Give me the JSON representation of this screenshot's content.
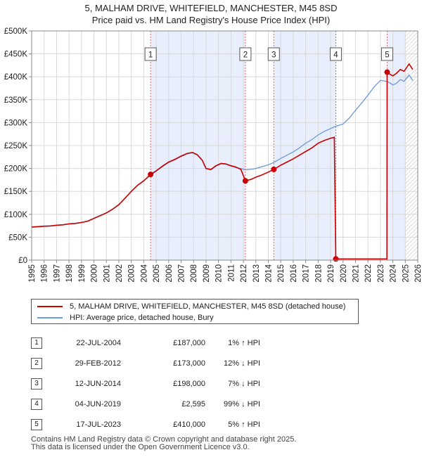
{
  "chart_data": {
    "type": "line",
    "title": "5, MALHAM DRIVE, WHITEFIELD, MANCHESTER, M45 8SD",
    "subtitle": "Price paid vs. HM Land Registry's House Price Index (HPI)",
    "xlabel": "",
    "ylabel": "",
    "xlim": [
      1995,
      2026
    ],
    "ylim": [
      0,
      500000
    ],
    "x_ticks": [
      "1995",
      "1996",
      "1997",
      "1998",
      "1999",
      "2000",
      "2001",
      "2002",
      "2003",
      "2004",
      "2005",
      "2006",
      "2007",
      "2008",
      "2009",
      "2010",
      "2011",
      "2012",
      "2013",
      "2014",
      "2015",
      "2016",
      "2017",
      "2018",
      "2019",
      "2020",
      "2021",
      "2022",
      "2023",
      "2024",
      "2025",
      "2026"
    ],
    "y_ticks": [
      {
        "value": 0,
        "label": "£0"
      },
      {
        "value": 50000,
        "label": "£50K"
      },
      {
        "value": 100000,
        "label": "£100K"
      },
      {
        "value": 150000,
        "label": "£150K"
      },
      {
        "value": 200000,
        "label": "£200K"
      },
      {
        "value": 250000,
        "label": "£250K"
      },
      {
        "value": 300000,
        "label": "£300K"
      },
      {
        "value": 350000,
        "label": "£350K"
      },
      {
        "value": 400000,
        "label": "£400K"
      },
      {
        "value": 450000,
        "label": "£450K"
      },
      {
        "value": 500000,
        "label": "£500K"
      }
    ],
    "grid": true,
    "colors": {
      "price": "#cc0000",
      "hpi": "#6a9bd8",
      "shade": "#e8eefc",
      "sale_line": "#e06666",
      "future_hatch": "#bbbbbb"
    },
    "future_from": 2025.0,
    "series": [
      {
        "name": "5, MALHAM DRIVE, WHITEFIELD, MANCHESTER, M45 8SD (detached house)",
        "color": "#cc0000",
        "points": [
          [
            1995.0,
            72000
          ],
          [
            1995.5,
            73000
          ],
          [
            1996.0,
            74000
          ],
          [
            1996.5,
            74500
          ],
          [
            1997.0,
            76000
          ],
          [
            1997.5,
            77000
          ],
          [
            1998.0,
            79000
          ],
          [
            1998.5,
            80000
          ],
          [
            1999.0,
            82000
          ],
          [
            1999.5,
            85000
          ],
          [
            2000.0,
            91000
          ],
          [
            2000.5,
            97000
          ],
          [
            2001.0,
            103000
          ],
          [
            2001.5,
            111000
          ],
          [
            2002.0,
            121000
          ],
          [
            2002.5,
            135000
          ],
          [
            2003.0,
            150000
          ],
          [
            2003.5,
            163000
          ],
          [
            2004.0,
            173000
          ],
          [
            2004.55,
            187000
          ],
          [
            2005.0,
            195000
          ],
          [
            2005.5,
            205000
          ],
          [
            2006.0,
            214000
          ],
          [
            2006.5,
            220000
          ],
          [
            2007.0,
            227000
          ],
          [
            2007.5,
            233000
          ],
          [
            2007.9,
            235000
          ],
          [
            2008.3,
            230000
          ],
          [
            2008.7,
            218000
          ],
          [
            2009.0,
            200000
          ],
          [
            2009.4,
            198000
          ],
          [
            2009.8,
            206000
          ],
          [
            2010.2,
            211000
          ],
          [
            2010.6,
            210000
          ],
          [
            2011.0,
            206000
          ],
          [
            2011.4,
            203000
          ],
          [
            2011.8,
            198000
          ],
          [
            2012.16,
            173000
          ],
          [
            2012.6,
            176000
          ],
          [
            2013.0,
            181000
          ],
          [
            2013.5,
            186000
          ],
          [
            2014.0,
            192000
          ],
          [
            2014.44,
            198000
          ],
          [
            2015.0,
            207000
          ],
          [
            2015.5,
            214000
          ],
          [
            2016.0,
            221000
          ],
          [
            2016.5,
            229000
          ],
          [
            2017.0,
            237000
          ],
          [
            2017.5,
            245000
          ],
          [
            2018.0,
            255000
          ],
          [
            2018.5,
            261000
          ],
          [
            2019.0,
            266000
          ],
          [
            2019.3,
            268000
          ],
          [
            2019.42,
            2595
          ],
          [
            2020.0,
            2600
          ],
          [
            2021.0,
            2620
          ],
          [
            2022.0,
            2640
          ],
          [
            2023.0,
            2660
          ],
          [
            2023.52,
            2700
          ],
          [
            2023.54,
            410000
          ],
          [
            2023.8,
            405000
          ],
          [
            2024.0,
            402000
          ],
          [
            2024.3,
            408000
          ],
          [
            2024.6,
            416000
          ],
          [
            2024.9,
            412000
          ],
          [
            2025.1,
            420000
          ],
          [
            2025.3,
            428000
          ],
          [
            2025.6,
            416000
          ]
        ]
      },
      {
        "name": "HPI: Average price, detached house, Bury",
        "color": "#6a9bd8",
        "points": [
          [
            1995.0,
            73000
          ],
          [
            1995.5,
            73500
          ],
          [
            1996.0,
            74500
          ],
          [
            1996.5,
            75000
          ],
          [
            1997.0,
            76500
          ],
          [
            1997.5,
            77500
          ],
          [
            1998.0,
            79500
          ],
          [
            1998.5,
            80500
          ],
          [
            1999.0,
            82500
          ],
          [
            1999.5,
            85500
          ],
          [
            2000.0,
            91500
          ],
          [
            2000.5,
            97500
          ],
          [
            2001.0,
            103500
          ],
          [
            2001.5,
            111500
          ],
          [
            2002.0,
            121500
          ],
          [
            2002.5,
            135500
          ],
          [
            2003.0,
            150500
          ],
          [
            2003.5,
            163500
          ],
          [
            2004.0,
            173500
          ],
          [
            2004.55,
            185000
          ],
          [
            2005.0,
            194000
          ],
          [
            2005.5,
            204000
          ],
          [
            2006.0,
            213000
          ],
          [
            2006.5,
            219000
          ],
          [
            2007.0,
            226000
          ],
          [
            2007.5,
            232000
          ],
          [
            2007.9,
            234000
          ],
          [
            2008.3,
            229000
          ],
          [
            2008.7,
            217000
          ],
          [
            2009.0,
            199000
          ],
          [
            2009.4,
            197000
          ],
          [
            2009.8,
            205000
          ],
          [
            2010.2,
            210000
          ],
          [
            2010.6,
            209000
          ],
          [
            2011.0,
            205000
          ],
          [
            2011.4,
            202000
          ],
          [
            2011.8,
            200000
          ],
          [
            2012.16,
            197000
          ],
          [
            2012.6,
            198000
          ],
          [
            2013.0,
            200000
          ],
          [
            2013.5,
            204000
          ],
          [
            2014.0,
            208000
          ],
          [
            2014.44,
            213000
          ],
          [
            2015.0,
            222000
          ],
          [
            2015.5,
            229000
          ],
          [
            2016.0,
            236000
          ],
          [
            2016.5,
            245000
          ],
          [
            2017.0,
            255000
          ],
          [
            2017.5,
            263000
          ],
          [
            2018.0,
            273000
          ],
          [
            2018.5,
            281000
          ],
          [
            2019.0,
            287000
          ],
          [
            2019.42,
            292000
          ],
          [
            2020.0,
            297000
          ],
          [
            2020.5,
            310000
          ],
          [
            2021.0,
            327000
          ],
          [
            2021.5,
            343000
          ],
          [
            2022.0,
            360000
          ],
          [
            2022.5,
            378000
          ],
          [
            2023.0,
            392000
          ],
          [
            2023.54,
            390000
          ],
          [
            2023.8,
            386000
          ],
          [
            2024.0,
            382000
          ],
          [
            2024.3,
            386000
          ],
          [
            2024.6,
            394000
          ],
          [
            2024.9,
            390000
          ],
          [
            2025.1,
            397000
          ],
          [
            2025.3,
            404000
          ],
          [
            2025.6,
            392000
          ]
        ]
      }
    ],
    "transactions": [
      {
        "n": "1",
        "x": 2004.55,
        "price": 187000
      },
      {
        "n": "2",
        "x": 2012.16,
        "price": 173000
      },
      {
        "n": "3",
        "x": 2014.44,
        "price": 198000
      },
      {
        "n": "4",
        "x": 2019.42,
        "price": 2595
      },
      {
        "n": "5",
        "x": 2023.54,
        "price": 410000
      }
    ]
  },
  "legend": {
    "price_label": "5, MALHAM DRIVE, WHITEFIELD, MANCHESTER, M45 8SD (detached house)",
    "hpi_label": "HPI: Average price, detached house, Bury"
  },
  "table": [
    {
      "n": "1",
      "date": "22-JUL-2004",
      "price": "£187,000",
      "hpi": "1% ↑ HPI"
    },
    {
      "n": "2",
      "date": "29-FEB-2012",
      "price": "£173,000",
      "hpi": "12% ↓ HPI"
    },
    {
      "n": "3",
      "date": "12-JUN-2014",
      "price": "£198,000",
      "hpi": "7% ↓ HPI"
    },
    {
      "n": "4",
      "date": "04-JUN-2019",
      "price": "£2,595",
      "hpi": "99% ↓ HPI"
    },
    {
      "n": "5",
      "date": "17-JUL-2023",
      "price": "£410,000",
      "hpi": "5% ↑ HPI"
    }
  ],
  "footer": {
    "line1": "Contains HM Land Registry data © Crown copyright and database right 2025.",
    "line2": "This data is licensed under the Open Government Licence v3.0."
  }
}
